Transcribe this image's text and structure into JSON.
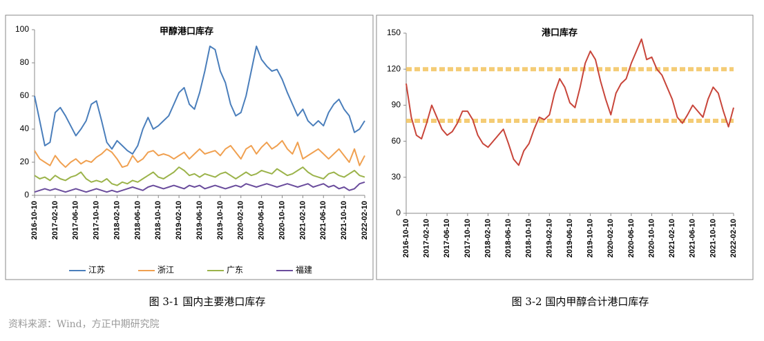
{
  "chart_data": [
    {
      "type": "line",
      "title": "甲醇港口库存",
      "caption": "图 3-1  国内主要港口库存",
      "x": [
        "2016-10-10",
        "2016-11-10",
        "2016-12-10",
        "2017-01-10",
        "2017-02-10",
        "2017-03-10",
        "2017-04-10",
        "2017-05-10",
        "2017-06-10",
        "2017-07-10",
        "2017-08-10",
        "2017-09-10",
        "2017-10-10",
        "2017-11-10",
        "2017-12-10",
        "2018-01-10",
        "2018-02-10",
        "2018-03-10",
        "2018-04-10",
        "2018-05-10",
        "2018-06-10",
        "2018-07-10",
        "2018-08-10",
        "2018-09-10",
        "2018-10-10",
        "2018-11-10",
        "2018-12-10",
        "2019-01-10",
        "2019-02-10",
        "2019-03-10",
        "2019-04-10",
        "2019-05-10",
        "2019-06-10",
        "2019-07-10",
        "2019-08-10",
        "2019-09-10",
        "2019-10-10",
        "2019-11-10",
        "2019-12-10",
        "2020-01-10",
        "2020-02-10",
        "2020-03-10",
        "2020-04-10",
        "2020-05-10",
        "2020-06-10",
        "2020-07-10",
        "2020-08-10",
        "2020-09-10",
        "2020-10-10",
        "2020-11-10",
        "2020-12-10",
        "2021-01-10",
        "2021-02-10",
        "2021-03-10",
        "2021-04-10",
        "2021-05-10",
        "2021-06-10",
        "2021-07-10",
        "2021-08-10",
        "2021-09-10",
        "2021-10-10",
        "2021-11-10",
        "2021-12-10",
        "2022-01-10",
        "2022-02-10"
      ],
      "xticks": [
        "2016-10-10",
        "2017-02-10",
        "2017-06-10",
        "2017-10-10",
        "2018-02-10",
        "2018-06-10",
        "2018-10-10",
        "2019-02-10",
        "2019-06-10",
        "2019-10-10",
        "2020-02-10",
        "2020-06-10",
        "2020-10-10",
        "2021-02-10",
        "2021-06-10",
        "2021-10-10",
        "2022-02-10"
      ],
      "ylim": [
        0,
        100
      ],
      "yticks": [
        0,
        20,
        40,
        60,
        80,
        100
      ],
      "series": [
        {
          "name": "江苏",
          "color": "#4a7ebb",
          "values": [
            60,
            45,
            30,
            32,
            50,
            53,
            48,
            42,
            36,
            40,
            45,
            55,
            57,
            45,
            32,
            28,
            33,
            30,
            27,
            25,
            30,
            40,
            47,
            40,
            42,
            45,
            48,
            55,
            62,
            65,
            55,
            52,
            62,
            75,
            90,
            88,
            75,
            68,
            55,
            48,
            50,
            60,
            75,
            90,
            82,
            78,
            75,
            76,
            70,
            62,
            55,
            48,
            52,
            45,
            42,
            45,
            42,
            50,
            55,
            58,
            52,
            48,
            38,
            40,
            45
          ]
        },
        {
          "name": "浙江",
          "color": "#f0a050",
          "values": [
            27,
            22,
            20,
            18,
            24,
            20,
            17,
            20,
            22,
            19,
            21,
            20,
            23,
            25,
            28,
            26,
            22,
            17,
            18,
            24,
            20,
            22,
            26,
            27,
            24,
            25,
            24,
            22,
            24,
            26,
            22,
            25,
            28,
            25,
            26,
            27,
            24,
            28,
            30,
            26,
            22,
            28,
            30,
            25,
            29,
            32,
            28,
            30,
            33,
            28,
            25,
            32,
            22,
            24,
            26,
            28,
            25,
            22,
            25,
            28,
            24,
            20,
            28,
            18,
            24
          ]
        },
        {
          "name": "广东",
          "color": "#9bb34a",
          "values": [
            12,
            10,
            11,
            9,
            12,
            10,
            9,
            11,
            12,
            14,
            10,
            8,
            9,
            8,
            10,
            7,
            6,
            8,
            7,
            9,
            8,
            10,
            12,
            14,
            11,
            10,
            12,
            14,
            17,
            15,
            12,
            13,
            11,
            13,
            12,
            11,
            13,
            14,
            12,
            10,
            12,
            14,
            12,
            13,
            15,
            14,
            13,
            16,
            14,
            12,
            13,
            15,
            17,
            14,
            12,
            11,
            10,
            13,
            14,
            12,
            11,
            13,
            15,
            12,
            11
          ]
        },
        {
          "name": "福建",
          "color": "#6a4c9c",
          "values": [
            2,
            3,
            4,
            3,
            4,
            3,
            2,
            3,
            4,
            3,
            2,
            3,
            4,
            3,
            2,
            3,
            2,
            3,
            4,
            5,
            4,
            3,
            5,
            6,
            5,
            4,
            5,
            6,
            5,
            4,
            6,
            5,
            6,
            4,
            5,
            6,
            5,
            4,
            5,
            6,
            5,
            7,
            6,
            5,
            6,
            7,
            6,
            5,
            6,
            7,
            6,
            5,
            6,
            7,
            5,
            6,
            7,
            5,
            6,
            4,
            5,
            3,
            4,
            7,
            8
          ]
        }
      ]
    },
    {
      "type": "line",
      "title": "港口库存",
      "caption": "图 3-2  国内甲醇合计港口库存",
      "x": [
        "2016-10-10",
        "2016-11-10",
        "2016-12-10",
        "2017-01-10",
        "2017-02-10",
        "2017-03-10",
        "2017-04-10",
        "2017-05-10",
        "2017-06-10",
        "2017-07-10",
        "2017-08-10",
        "2017-09-10",
        "2017-10-10",
        "2017-11-10",
        "2017-12-10",
        "2018-01-10",
        "2018-02-10",
        "2018-03-10",
        "2018-04-10",
        "2018-05-10",
        "2018-06-10",
        "2018-07-10",
        "2018-08-10",
        "2018-09-10",
        "2018-10-10",
        "2018-11-10",
        "2018-12-10",
        "2019-01-10",
        "2019-02-10",
        "2019-03-10",
        "2019-04-10",
        "2019-05-10",
        "2019-06-10",
        "2019-07-10",
        "2019-08-10",
        "2019-09-10",
        "2019-10-10",
        "2019-11-10",
        "2019-12-10",
        "2020-01-10",
        "2020-02-10",
        "2020-03-10",
        "2020-04-10",
        "2020-05-10",
        "2020-06-10",
        "2020-07-10",
        "2020-08-10",
        "2020-09-10",
        "2020-10-10",
        "2020-11-10",
        "2020-12-10",
        "2021-01-10",
        "2021-02-10",
        "2021-03-10",
        "2021-04-10",
        "2021-05-10",
        "2021-06-10",
        "2021-07-10",
        "2021-08-10",
        "2021-09-10",
        "2021-10-10",
        "2021-11-10",
        "2021-12-10",
        "2022-01-10",
        "2022-02-10"
      ],
      "xticks": [
        "2016-10-10",
        "2017-02-10",
        "2017-06-10",
        "2017-10-10",
        "2018-02-10",
        "2018-06-10",
        "2018-10-10",
        "2019-02-10",
        "2019-06-10",
        "2019-10-10",
        "2020-02-10",
        "2020-06-10",
        "2020-10-10",
        "2021-02-10",
        "2021-06-10",
        "2021-10-10",
        "2022-02-10"
      ],
      "ylim": [
        0,
        150
      ],
      "yticks": [
        0,
        30,
        60,
        90,
        120,
        150
      ],
      "reference_lines": [
        120,
        77
      ],
      "reference_color": "#f3c45e",
      "series": [
        {
          "name": "港口库存",
          "color": "#c8453a",
          "values": [
            108,
            80,
            65,
            62,
            75,
            90,
            80,
            70,
            65,
            68,
            75,
            85,
            85,
            78,
            65,
            58,
            55,
            60,
            65,
            70,
            58,
            45,
            40,
            52,
            58,
            70,
            80,
            78,
            82,
            100,
            112,
            105,
            92,
            88,
            105,
            125,
            135,
            128,
            110,
            95,
            82,
            100,
            108,
            112,
            125,
            135,
            145,
            128,
            130,
            120,
            115,
            105,
            95,
            80,
            75,
            82,
            90,
            85,
            80,
            95,
            105,
            100,
            85,
            72,
            88
          ]
        }
      ]
    }
  ],
  "source": "资料来源：Wind，方正中期研究院"
}
